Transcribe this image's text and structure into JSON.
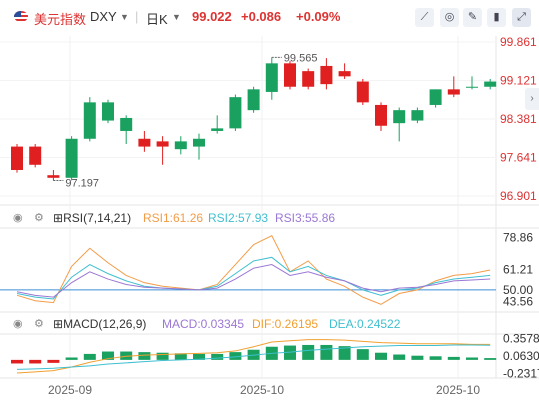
{
  "header": {
    "name": "美元指数",
    "code": "DXY",
    "period": "日K",
    "price": "99.022",
    "change": "+0.086",
    "change_pct": "+0.09%"
  },
  "colors": {
    "up": "#e02020",
    "down": "#1aa160",
    "rsi1": "#f39c48",
    "rsi2": "#3fbfd0",
    "rsi3": "#9b77d4",
    "dif": "#f0a030",
    "dea": "#3fbfd0"
  },
  "toolbar": {
    "icons": [
      "line-chart-icon",
      "eye-off-icon",
      "pencil-icon",
      "delete-icon",
      "expand-icon",
      "settings-icon"
    ]
  },
  "indicators": {
    "rsi": {
      "label": "RSI(7,14,21)",
      "r1": "RSI1:61.26",
      "r2": "RSI2:57.93",
      "r3": "RSI3:55.86"
    },
    "macd": {
      "label": "MACD(12,26,9)",
      "macd": "MACD:0.03345",
      "dif": "DIF:0.26195",
      "dea": "DEA:0.24522"
    }
  },
  "chart_data": [
    {
      "type": "candlestick",
      "price_axis": [
        "99.861",
        "99.121",
        "98.381",
        "97.641",
        "96.901"
      ],
      "ylim": [
        96.9,
        99.86
      ],
      "date_labels": [
        "2025-09",
        "2025-10",
        "2025-10"
      ],
      "annotations": {
        "high": "99.565",
        "low": "97.197"
      },
      "candles": [
        {
          "o": 97.85,
          "h": 97.9,
          "l": 97.35,
          "c": 97.4
        },
        {
          "o": 97.85,
          "h": 97.9,
          "l": 97.45,
          "c": 97.5
        },
        {
          "o": 97.3,
          "h": 97.4,
          "l": 97.197,
          "c": 97.25
        },
        {
          "o": 97.25,
          "h": 98.05,
          "l": 97.2,
          "c": 98.0
        },
        {
          "o": 98.0,
          "h": 98.8,
          "l": 97.95,
          "c": 98.7
        },
        {
          "o": 98.35,
          "h": 98.75,
          "l": 98.3,
          "c": 98.7
        },
        {
          "o": 98.15,
          "h": 98.45,
          "l": 97.9,
          "c": 98.4
        },
        {
          "o": 98.0,
          "h": 98.15,
          "l": 97.75,
          "c": 97.85
        },
        {
          "o": 97.95,
          "h": 98.05,
          "l": 97.5,
          "c": 97.85
        },
        {
          "o": 97.8,
          "h": 98.05,
          "l": 97.7,
          "c": 97.95
        },
        {
          "o": 97.85,
          "h": 98.1,
          "l": 97.6,
          "c": 98.0
        },
        {
          "o": 98.15,
          "h": 98.45,
          "l": 98.1,
          "c": 98.2
        },
        {
          "o": 98.2,
          "h": 98.85,
          "l": 98.15,
          "c": 98.8
        },
        {
          "o": 98.55,
          "h": 99.0,
          "l": 98.5,
          "c": 98.95
        },
        {
          "o": 98.9,
          "h": 99.565,
          "l": 98.75,
          "c": 99.45
        },
        {
          "o": 99.45,
          "h": 99.5,
          "l": 98.95,
          "c": 99.0
        },
        {
          "o": 99.3,
          "h": 99.35,
          "l": 98.95,
          "c": 99.0
        },
        {
          "o": 99.4,
          "h": 99.55,
          "l": 98.95,
          "c": 99.05
        },
        {
          "o": 99.3,
          "h": 99.45,
          "l": 99.15,
          "c": 99.2
        },
        {
          "o": 99.1,
          "h": 99.15,
          "l": 98.65,
          "c": 98.7
        },
        {
          "o": 98.65,
          "h": 98.7,
          "l": 98.15,
          "c": 98.25
        },
        {
          "o": 98.3,
          "h": 98.6,
          "l": 97.95,
          "c": 98.55
        },
        {
          "o": 98.35,
          "h": 98.6,
          "l": 98.3,
          "c": 98.55
        },
        {
          "o": 98.65,
          "h": 98.95,
          "l": 98.6,
          "c": 98.95
        },
        {
          "o": 98.95,
          "h": 99.2,
          "l": 98.8,
          "c": 98.85
        },
        {
          "o": 99.0,
          "h": 99.2,
          "l": 98.95,
          "c": 99.0
        },
        {
          "o": 99.0,
          "h": 99.15,
          "l": 98.95,
          "c": 99.1
        }
      ]
    },
    {
      "type": "line",
      "name": "RSI",
      "y_axis": [
        "78.86",
        "61.21",
        "50.00",
        "43.56"
      ],
      "ylim": [
        40,
        82
      ],
      "reference": 50,
      "series": [
        {
          "name": "RSI1",
          "values": [
            47,
            44,
            43,
            63,
            73,
            65,
            58,
            54,
            52,
            51,
            50,
            53,
            64,
            75,
            80,
            60,
            66,
            56,
            52,
            46,
            42,
            48,
            50,
            55,
            58,
            59,
            61
          ]
        },
        {
          "name": "RSI2",
          "values": [
            48,
            46,
            45,
            57,
            64,
            59,
            55,
            52,
            51,
            50.5,
            50,
            52,
            59,
            66,
            68,
            60,
            63,
            58,
            55,
            50,
            47,
            50,
            51,
            54,
            56,
            57,
            58
          ]
        },
        {
          "name": "RSI3",
          "values": [
            49,
            47,
            46,
            54,
            60,
            56,
            53,
            51.5,
            51,
            50.5,
            50,
            51,
            56,
            62,
            64,
            58,
            60,
            57,
            55,
            51,
            49,
            51,
            51.5,
            53,
            55,
            55.5,
            56
          ]
        }
      ]
    },
    {
      "type": "bar",
      "name": "MACD",
      "y_axis": [
        "0.35781",
        "0.06304",
        "-0.23173"
      ],
      "ylim": [
        -0.27,
        0.4
      ],
      "histogram": [
        -0.06,
        -0.06,
        -0.05,
        0.04,
        0.1,
        0.14,
        0.14,
        0.13,
        0.12,
        0.11,
        0.1,
        0.1,
        0.13,
        0.17,
        0.22,
        0.24,
        0.25,
        0.25,
        0.23,
        0.18,
        0.12,
        0.09,
        0.07,
        0.06,
        0.05,
        0.04,
        0.03
      ],
      "series": [
        {
          "name": "DIF",
          "values": [
            -0.22,
            -0.2,
            -0.18,
            -0.12,
            -0.04,
            0.02,
            0.06,
            0.08,
            0.09,
            0.1,
            0.11,
            0.12,
            0.15,
            0.22,
            0.3,
            0.32,
            0.34,
            0.34,
            0.33,
            0.31,
            0.29,
            0.28,
            0.27,
            0.27,
            0.27,
            0.26,
            0.26
          ]
        },
        {
          "name": "DEA",
          "values": [
            -0.16,
            -0.15,
            -0.14,
            -0.12,
            -0.1,
            -0.07,
            -0.05,
            -0.03,
            -0.01,
            0.0,
            0.01,
            0.03,
            0.05,
            0.08,
            0.11,
            0.13,
            0.16,
            0.18,
            0.2,
            0.22,
            0.23,
            0.24,
            0.24,
            0.24,
            0.25,
            0.25,
            0.245
          ]
        }
      ]
    }
  ]
}
